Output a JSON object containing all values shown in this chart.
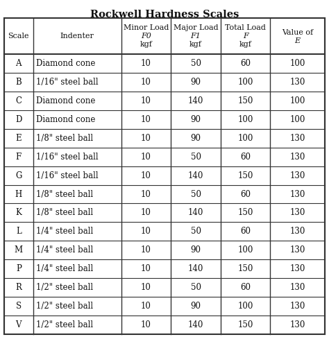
{
  "title": "Rockwell Hardness Scales",
  "header_line1": [
    "",
    "",
    "Minor Load",
    "Major Load",
    "Total Load",
    "Value of"
  ],
  "header_line2": [
    "Scale",
    "Indenter",
    "F0",
    "F1",
    "F",
    "E"
  ],
  "header_line3": [
    "",
    "",
    "kgf",
    "kgf",
    "kgf",
    ""
  ],
  "header_italic": [
    false,
    false,
    true,
    true,
    true,
    true
  ],
  "rows": [
    [
      "A",
      "Diamond cone",
      "10",
      "50",
      "60",
      "100"
    ],
    [
      "B",
      "1/16\" steel ball",
      "10",
      "90",
      "100",
      "130"
    ],
    [
      "C",
      "Diamond cone",
      "10",
      "140",
      "150",
      "100"
    ],
    [
      "D",
      "Diamond cone",
      "10",
      "90",
      "100",
      "100"
    ],
    [
      "E",
      "1/8\" steel ball",
      "10",
      "90",
      "100",
      "130"
    ],
    [
      "F",
      "1/16\" steel ball",
      "10",
      "50",
      "60",
      "130"
    ],
    [
      "G",
      "1/16\" steel ball",
      "10",
      "140",
      "150",
      "130"
    ],
    [
      "H",
      "1/8\" steel ball",
      "10",
      "50",
      "60",
      "130"
    ],
    [
      "K",
      "1/8\" steel ball",
      "10",
      "140",
      "150",
      "130"
    ],
    [
      "L",
      "1/4\" steel ball",
      "10",
      "50",
      "60",
      "130"
    ],
    [
      "M",
      "1/4\" steel ball",
      "10",
      "90",
      "100",
      "130"
    ],
    [
      "P",
      "1/4\" steel ball",
      "10",
      "140",
      "150",
      "130"
    ],
    [
      "R",
      "1/2\" steel ball",
      "10",
      "50",
      "60",
      "130"
    ],
    [
      "S",
      "1/2\" steel ball",
      "10",
      "90",
      "100",
      "130"
    ],
    [
      "V",
      "1/2\" steel ball",
      "10",
      "140",
      "150",
      "130"
    ]
  ],
  "col_weights": [
    0.09,
    0.275,
    0.155,
    0.155,
    0.155,
    0.17
  ],
  "bg_color": "#ffffff",
  "border_color": "#333333",
  "text_color": "#111111",
  "title_fontsize": 10.5,
  "header_fontsize": 8.0,
  "cell_fontsize": 8.5,
  "serif_font": "DejaVu Serif"
}
